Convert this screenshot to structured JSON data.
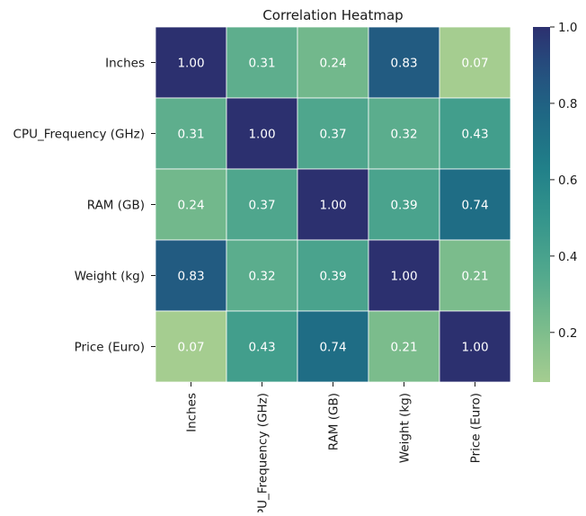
{
  "chart_data": {
    "type": "heatmap",
    "title": "Correlation Heatmap",
    "xlabel": "",
    "ylabel": "",
    "x_categories": [
      "Inches",
      "CPU_Frequency (GHz)",
      "RAM (GB)",
      "Weight (kg)",
      "Price (Euro)"
    ],
    "y_categories": [
      "Inches",
      "CPU_Frequency (GHz)",
      "RAM (GB)",
      "Weight (kg)",
      "Price (Euro)"
    ],
    "values": [
      [
        1.0,
        0.31,
        0.24,
        0.83,
        0.07
      ],
      [
        0.31,
        1.0,
        0.37,
        0.32,
        0.43
      ],
      [
        0.24,
        0.37,
        1.0,
        0.39,
        0.74
      ],
      [
        0.83,
        0.32,
        0.39,
        1.0,
        0.21
      ],
      [
        0.07,
        0.43,
        0.74,
        0.21,
        1.0
      ]
    ],
    "annotation_format": "0.00",
    "colormap": "crest",
    "color_range": [
      0.07,
      1.0
    ],
    "colorbar_ticks": [
      0.2,
      0.4,
      0.6,
      0.8,
      1.0
    ],
    "colorbar_tick_labels": [
      "0.2",
      "0.4",
      "0.6",
      "0.8",
      "1.0"
    ],
    "cell_border_color": "#ffffff",
    "annotation_color": "#ffffff",
    "grid": false,
    "legend": "colorbar-right"
  }
}
